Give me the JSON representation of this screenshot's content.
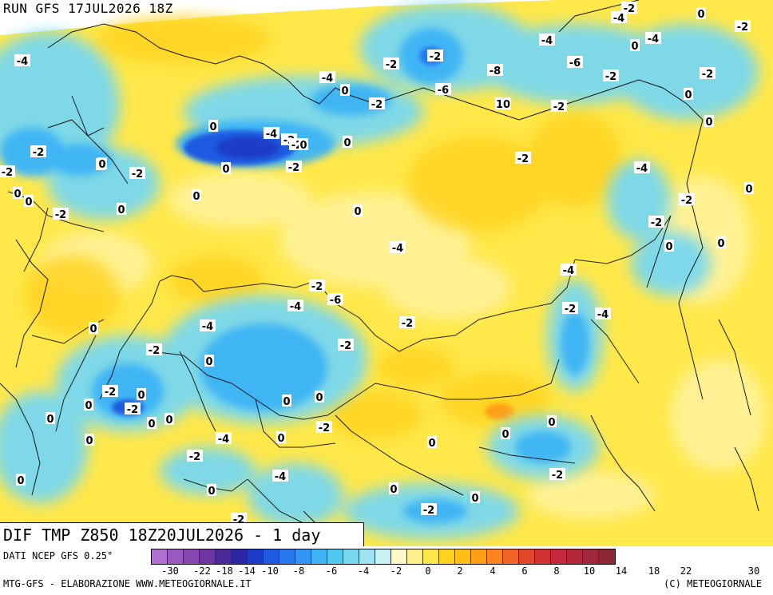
{
  "header": {
    "run_label": "RUN GFS 17JUL2026 18Z"
  },
  "map": {
    "title": "DIF TMP Z850 18Z20JUL2026 - 1 day",
    "field": "Temperature difference at 850 hPa",
    "base_color": "#ffe84a",
    "background_color": "#ffffff",
    "contour_labels": [
      "-2",
      "-4",
      "0",
      "-2",
      "-4",
      "-2",
      "-4",
      "0",
      "-2",
      "-2",
      "-2",
      "-6",
      "-8",
      "10",
      "-4",
      "-6",
      "-2",
      "0",
      "-4",
      "-2",
      "-2",
      "0",
      "0",
      "-2",
      "0",
      "-4",
      "-2",
      "-2",
      "0",
      "-2",
      "0",
      "0",
      "-4",
      "-2",
      "0",
      "-2",
      "0",
      "0",
      "-4",
      "-2",
      "-4",
      "0",
      "-2",
      "0",
      "-2",
      "0",
      "0",
      "-2",
      "0",
      "0",
      "0",
      "-4",
      "-2",
      "-4",
      "-6",
      "-2",
      "-2",
      "-4",
      "0",
      "-2",
      "0",
      "0",
      "0",
      "0",
      "-2",
      "-4",
      "-2",
      "-2",
      "0",
      "-2",
      "0",
      "0",
      "0",
      "0",
      "0",
      "0",
      "0",
      "-4",
      "-2",
      "0",
      "0",
      "0",
      "0",
      "-2",
      "0",
      "-2",
      "-2"
    ]
  },
  "footer": {
    "source_label": "DATI NCEP GFS 0.25°",
    "credit_label": "MTG-GFS - ELABORAZIONE WWW.METEOGIORNALE.IT",
    "copyright_label": "(C) METEOGIORNALE"
  },
  "colorbar": {
    "colors": [
      "#b070d0",
      "#9a5ac0",
      "#8448b0",
      "#6e36a0",
      "#4a2896",
      "#2a28a0",
      "#1e3cc8",
      "#1e5ae0",
      "#2878f0",
      "#3296f5",
      "#3cb4f5",
      "#50c8f0",
      "#78d8f0",
      "#a0e4f2",
      "#c8f0f5",
      "#fff8c8",
      "#ffef8a",
      "#ffe84a",
      "#ffd21e",
      "#ffbe14",
      "#ffa014",
      "#ff821e",
      "#f06428",
      "#e04628",
      "#d23232",
      "#c3283c",
      "#b4283c",
      "#a0283c",
      "#8c2838"
    ],
    "tick_labels": [
      "-30",
      "-22",
      "-18",
      "-14",
      "-10",
      "-8",
      "-6",
      "-4",
      "-2",
      "0",
      "2",
      "4",
      "6",
      "8",
      "10",
      "14",
      "18",
      "22",
      "30"
    ]
  }
}
